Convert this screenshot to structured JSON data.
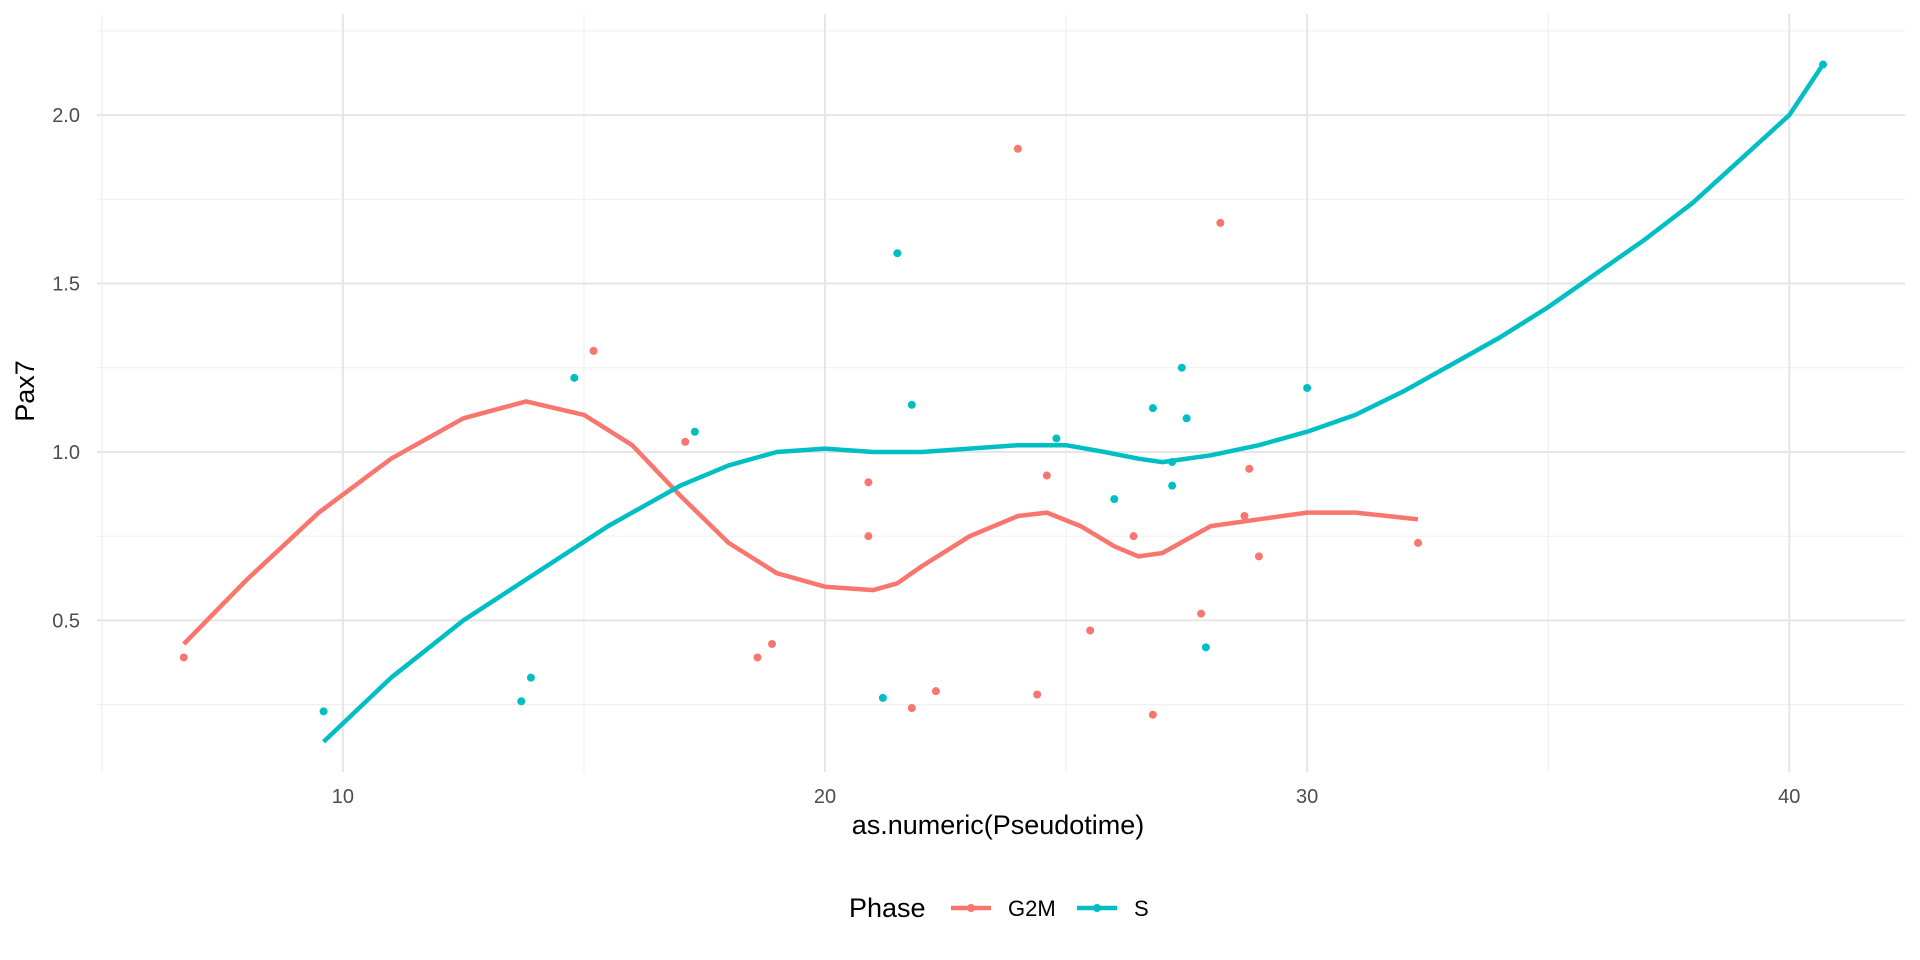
{
  "chart_data": {
    "type": "scatter",
    "xlabel": "as.numeric(Pseudotime)",
    "ylabel": "Pax7",
    "xlim": [
      4.9,
      42.4
    ],
    "ylim": [
      0.05,
      2.3
    ],
    "x_ticks": [
      10,
      20,
      30,
      40
    ],
    "x_tick_labels": [
      "10",
      "20",
      "30",
      "40"
    ],
    "y_ticks": [
      0.5,
      1.0,
      1.5,
      2.0
    ],
    "y_tick_labels": [
      "0.5",
      "1.0",
      "1.5",
      "2.0"
    ],
    "grid": true,
    "legend": {
      "title": "Phase",
      "position": "bottom"
    },
    "series": [
      {
        "name": "G2M",
        "color": "#F8766D",
        "points": [
          [
            6.7,
            0.39
          ],
          [
            15.2,
            1.3
          ],
          [
            17.1,
            1.03
          ],
          [
            18.6,
            0.39
          ],
          [
            18.9,
            0.43
          ],
          [
            20.9,
            0.91
          ],
          [
            20.9,
            0.75
          ],
          [
            21.8,
            0.24
          ],
          [
            22.3,
            0.29
          ],
          [
            24.0,
            1.9
          ],
          [
            24.4,
            0.28
          ],
          [
            24.6,
            0.93
          ],
          [
            25.5,
            0.47
          ],
          [
            26.4,
            0.75
          ],
          [
            26.8,
            0.22
          ],
          [
            27.8,
            0.52
          ],
          [
            28.2,
            1.68
          ],
          [
            28.7,
            0.81
          ],
          [
            28.8,
            0.95
          ],
          [
            29.0,
            0.69
          ],
          [
            32.3,
            0.73
          ]
        ],
        "smooth": [
          [
            6.7,
            0.43
          ],
          [
            8.0,
            0.62
          ],
          [
            9.5,
            0.82
          ],
          [
            11.0,
            0.98
          ],
          [
            12.5,
            1.1
          ],
          [
            13.8,
            1.15
          ],
          [
            15.0,
            1.11
          ],
          [
            16.0,
            1.02
          ],
          [
            17.0,
            0.87
          ],
          [
            18.0,
            0.73
          ],
          [
            19.0,
            0.64
          ],
          [
            20.0,
            0.6
          ],
          [
            21.0,
            0.59
          ],
          [
            21.5,
            0.61
          ],
          [
            22.0,
            0.66
          ],
          [
            23.0,
            0.75
          ],
          [
            24.0,
            0.81
          ],
          [
            24.6,
            0.82
          ],
          [
            25.3,
            0.78
          ],
          [
            26.0,
            0.72
          ],
          [
            26.5,
            0.69
          ],
          [
            27.0,
            0.7
          ],
          [
            27.5,
            0.74
          ],
          [
            28.0,
            0.78
          ],
          [
            29.0,
            0.8
          ],
          [
            30.0,
            0.82
          ],
          [
            31.0,
            0.82
          ],
          [
            32.3,
            0.8
          ]
        ]
      },
      {
        "name": "S",
        "color": "#00BFC4",
        "points": [
          [
            9.6,
            0.23
          ],
          [
            13.7,
            0.26
          ],
          [
            13.9,
            0.33
          ],
          [
            14.8,
            1.22
          ],
          [
            17.3,
            1.06
          ],
          [
            21.2,
            0.27
          ],
          [
            21.5,
            1.59
          ],
          [
            21.8,
            1.14
          ],
          [
            24.8,
            1.04
          ],
          [
            26.0,
            0.86
          ],
          [
            26.8,
            1.13
          ],
          [
            27.2,
            0.9
          ],
          [
            27.4,
            1.25
          ],
          [
            27.5,
            1.1
          ],
          [
            27.9,
            0.42
          ],
          [
            27.2,
            0.97
          ],
          [
            30.0,
            1.19
          ],
          [
            40.7,
            2.15
          ]
        ],
        "smooth": [
          [
            9.6,
            0.14
          ],
          [
            11.0,
            0.33
          ],
          [
            12.5,
            0.5
          ],
          [
            14.0,
            0.64
          ],
          [
            15.5,
            0.78
          ],
          [
            17.0,
            0.9
          ],
          [
            18.0,
            0.96
          ],
          [
            19.0,
            1.0
          ],
          [
            20.0,
            1.01
          ],
          [
            21.0,
            1.0
          ],
          [
            22.0,
            1.0
          ],
          [
            23.0,
            1.01
          ],
          [
            24.0,
            1.02
          ],
          [
            25.0,
            1.02
          ],
          [
            25.8,
            1.0
          ],
          [
            26.5,
            0.98
          ],
          [
            27.0,
            0.97
          ],
          [
            28.0,
            0.99
          ],
          [
            29.0,
            1.02
          ],
          [
            30.0,
            1.06
          ],
          [
            31.0,
            1.11
          ],
          [
            32.0,
            1.18
          ],
          [
            33.0,
            1.26
          ],
          [
            34.0,
            1.34
          ],
          [
            35.0,
            1.43
          ],
          [
            36.0,
            1.53
          ],
          [
            37.0,
            1.63
          ],
          [
            38.0,
            1.74
          ],
          [
            39.0,
            1.87
          ],
          [
            40.0,
            2.0
          ],
          [
            40.7,
            2.15
          ]
        ]
      }
    ]
  }
}
